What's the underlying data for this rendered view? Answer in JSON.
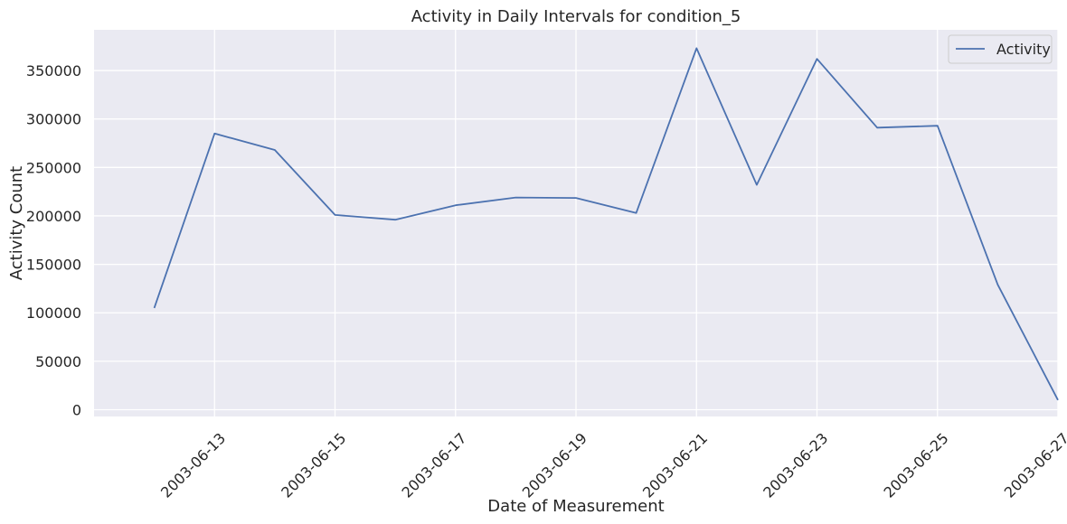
{
  "chart_data": {
    "type": "line",
    "title": "Activity in Daily Intervals for condition_5",
    "xlabel": "Date of Measurement",
    "ylabel": "Activity Count",
    "x": [
      "2003-06-12",
      "2003-06-13",
      "2003-06-14",
      "2003-06-15",
      "2003-06-16",
      "2003-06-17",
      "2003-06-18",
      "2003-06-19",
      "2003-06-20",
      "2003-06-21",
      "2003-06-22",
      "2003-06-23",
      "2003-06-24",
      "2003-06-25",
      "2003-06-26",
      "2003-06-27"
    ],
    "series": [
      {
        "name": "Activity",
        "values": [
          105000,
          285000,
          268000,
          201000,
          196000,
          211000,
          219000,
          218500,
          203000,
          373000,
          232000,
          362000,
          291000,
          293000,
          129000,
          10000
        ]
      }
    ],
    "x_ticks": [
      "2003-06-13",
      "2003-06-15",
      "2003-06-17",
      "2003-06-19",
      "2003-06-21",
      "2003-06-23",
      "2003-06-25",
      "2003-06-27"
    ],
    "y_ticks": [
      0,
      50000,
      100000,
      150000,
      200000,
      250000,
      300000,
      350000
    ],
    "xlim": [
      "2003-06-11",
      "2003-06-27"
    ],
    "ylim": [
      -7000,
      392000
    ],
    "grid": true,
    "legend_position": "top-right",
    "colors": {
      "line": "#4c72b0",
      "background": "#eaeaf2",
      "grid": "#ffffff",
      "text": "#262626"
    }
  }
}
